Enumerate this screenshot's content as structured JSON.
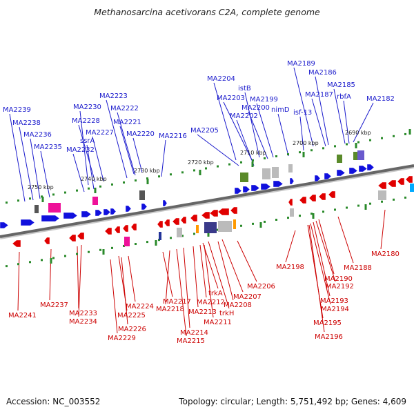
{
  "title": "Methanosarcina acetivorans C2A, complete genome",
  "accession_text": "Accession: NC_003552",
  "summary_text": "Topology: circular; Length: 5,751,492 bp; Genes: 4,609",
  "colors": {
    "forward": "#1010dd",
    "reverse": "#e00000",
    "forward_label": "#1a1acc",
    "reverse_label": "#cc0000",
    "tick": "#2a8a2a",
    "axis": "#666666",
    "magenta": "#ee1199",
    "olive": "#5a8a2a",
    "gray": "#bbbbbb",
    "darkgray": "#555555",
    "purple": "#6a5acd",
    "orange": "#ff9900",
    "cyan": "#00aaff"
  },
  "kbp_labels": [
    "2750 kbp",
    "2740 kbp",
    "2730 kbp",
    "2720 kbp",
    "2710 kbp",
    "2700 kbp",
    "2690 kbp"
  ],
  "top_genes": [
    "MA2239",
    "MA2238",
    "MA2236",
    "MA2235",
    "MA2232",
    "ssrA",
    "MA2230",
    "MA2228",
    "MA2227",
    "MA2223",
    "MA2222",
    "MA2221",
    "MA2220",
    "MA2216",
    "MA2205",
    "MA2204",
    "MA2203",
    "istB",
    "MA2202",
    "MA2200",
    "MA2199",
    "nimD",
    "isf-13",
    "MA2189",
    "MA2186",
    "MA2187",
    "MA2185",
    "rbfA",
    "MA2182"
  ],
  "bottom_genes": [
    "MA2241",
    "MA2237",
    "MA2233",
    "MA2234",
    "MA2229",
    "MA2226",
    "MA2225",
    "MA2224",
    "MA2217",
    "MA2218",
    "MA2215",
    "MA2214",
    "MA2213",
    "MA2212",
    "trkA",
    "trkH",
    "MA2211",
    "MA2208",
    "MA2207",
    "MA2206",
    "MA2198",
    "MA2196",
    "MA2195",
    "MA2194",
    "MA2193",
    "MA2192",
    "MA2190",
    "MA2188",
    "MA2180"
  ]
}
